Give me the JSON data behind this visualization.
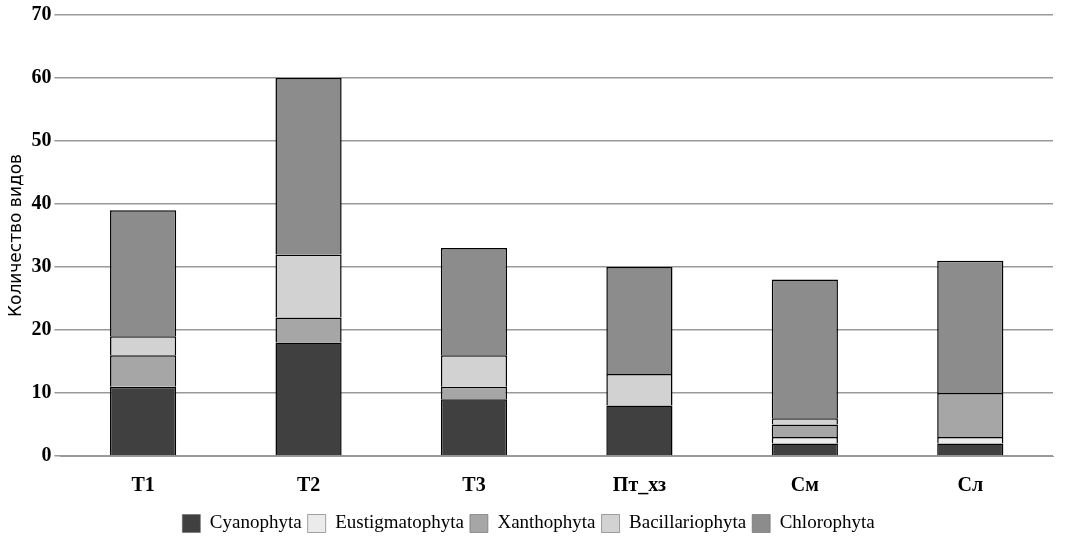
{
  "chart_data": {
    "type": "bar",
    "stacked": true,
    "ylabel": "Количество видов",
    "categories": [
      "T1",
      "T2",
      "T3",
      "Пт_хз",
      "См",
      "Сл"
    ],
    "series": [
      {
        "name": "Cyanophyta",
        "color": "#404040",
        "values": [
          11,
          18,
          9,
          8,
          2,
          2
        ]
      },
      {
        "name": "Eustigmatophyta",
        "color": "#ebebeb",
        "values": [
          0,
          0,
          0,
          0,
          1,
          1
        ]
      },
      {
        "name": "Xanthophyta",
        "color": "#a6a6a6",
        "values": [
          5,
          4,
          2,
          0,
          2,
          7
        ]
      },
      {
        "name": "Bacillariophyta",
        "color": "#d2d2d2",
        "values": [
          3,
          10,
          5,
          5,
          1,
          0
        ]
      },
      {
        "name": "Chlorophyta",
        "color": "#8c8c8c",
        "values": [
          20,
          28,
          17,
          17,
          22,
          21
        ]
      }
    ],
    "ylim": [
      0,
      70
    ],
    "yticks": [
      0,
      10,
      20,
      30,
      40,
      50,
      60,
      70
    ],
    "grid": "y",
    "legend": "bottom"
  }
}
